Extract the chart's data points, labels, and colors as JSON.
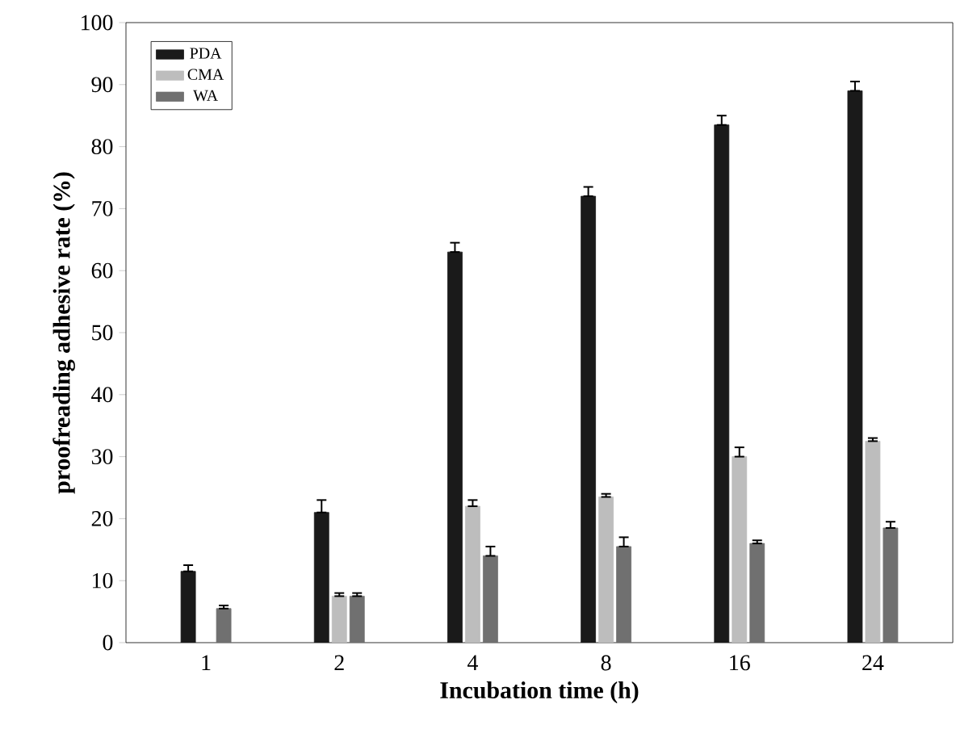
{
  "chart_data": {
    "type": "bar",
    "xlabel": "Incubation time (h)",
    "ylabel": "proofreading adhesive rate (%)",
    "categories": [
      "1",
      "2",
      "4",
      "8",
      "16",
      "24"
    ],
    "series": [
      {
        "name": "PDA",
        "color": "#1a1a1a",
        "values": [
          11.5,
          21,
          63,
          72,
          83.5,
          89
        ],
        "errors": [
          [
            11.5,
            12.5
          ],
          [
            21,
            23
          ],
          [
            63,
            64.5
          ],
          [
            72,
            73.5
          ],
          [
            83.5,
            85
          ],
          [
            89,
            90.5
          ]
        ]
      },
      {
        "name": "CMA",
        "color": "#bdbdbd",
        "values": [
          null,
          7.5,
          22,
          23.5,
          30,
          32.5
        ],
        "errors": [
          null,
          [
            7.5,
            8
          ],
          [
            22,
            23
          ],
          [
            23.5,
            24
          ],
          [
            30,
            31.5
          ],
          [
            32.5,
            33
          ]
        ]
      },
      {
        "name": "WA",
        "color": "#707070",
        "values": [
          5.5,
          7.5,
          14,
          15.5,
          16,
          18.5
        ],
        "errors": [
          [
            5.5,
            6
          ],
          [
            7.5,
            8
          ],
          [
            14,
            15.5
          ],
          [
            15.5,
            17
          ],
          [
            16,
            16.5
          ],
          [
            18.5,
            19.5
          ]
        ]
      }
    ],
    "ylim": [
      0,
      100
    ],
    "yticks": [
      0,
      10,
      20,
      30,
      40,
      50,
      60,
      70,
      80,
      90,
      100
    ],
    "legend": "top left",
    "grid": false
  }
}
